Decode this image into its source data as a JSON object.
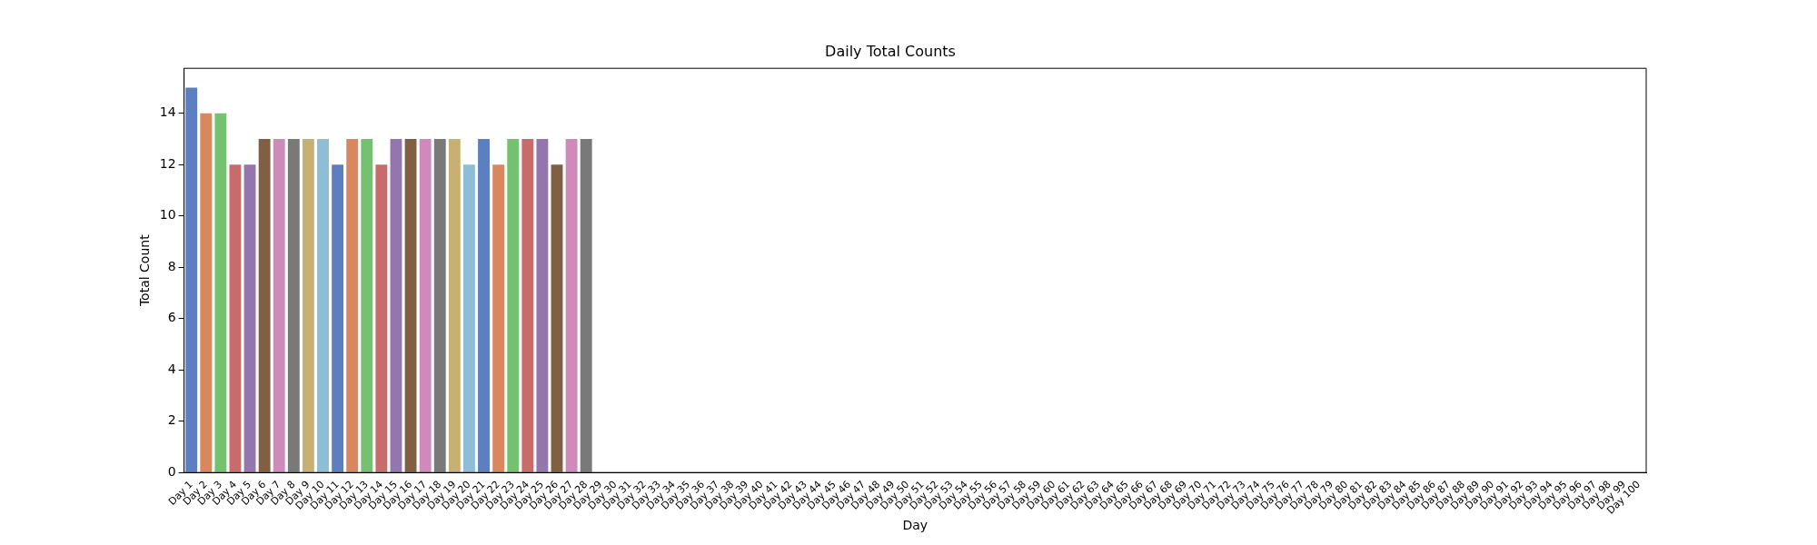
{
  "chart_data": {
    "type": "bar",
    "title": "Daily Total Counts",
    "xlabel": "Day",
    "ylabel": "Total Count",
    "categories": [
      "Day 1",
      "Day 2",
      "Day 3",
      "Day 4",
      "Day 5",
      "Day 6",
      "Day 7",
      "Day 8",
      "Day 9",
      "Day 10",
      "Day 11",
      "Day 12",
      "Day 13",
      "Day 14",
      "Day 15",
      "Day 16",
      "Day 17",
      "Day 18",
      "Day 19",
      "Day 20",
      "Day 21",
      "Day 22",
      "Day 23",
      "Day 24",
      "Day 25",
      "Day 26",
      "Day 27",
      "Day 28",
      "Day 29",
      "Day 30",
      "Day 31",
      "Day 32",
      "Day 33",
      "Day 34",
      "Day 35",
      "Day 36",
      "Day 37",
      "Day 38",
      "Day 39",
      "Day 40",
      "Day 41",
      "Day 42",
      "Day 43",
      "Day 44",
      "Day 45",
      "Day 46",
      "Day 47",
      "Day 48",
      "Day 49",
      "Day 50",
      "Day 51",
      "Day 52",
      "Day 53",
      "Day 54",
      "Day 55",
      "Day 56",
      "Day 57",
      "Day 58",
      "Day 59",
      "Day 60",
      "Day 61",
      "Day 62",
      "Day 63",
      "Day 64",
      "Day 65",
      "Day 66",
      "Day 67",
      "Day 68",
      "Day 69",
      "Day 70",
      "Day 71",
      "Day 72",
      "Day 73",
      "Day 74",
      "Day 75",
      "Day 76",
      "Day 77",
      "Day 78",
      "Day 79",
      "Day 80",
      "Day 81",
      "Day 82",
      "Day 83",
      "Day 84",
      "Day 85",
      "Day 86",
      "Day 87",
      "Day 88",
      "Day 89",
      "Day 90",
      "Day 91",
      "Day 92",
      "Day 93",
      "Day 94",
      "Day 95",
      "Day 96",
      "Day 97",
      "Day 98",
      "Day 99",
      "Day 100"
    ],
    "values": [
      15,
      14,
      14,
      12,
      12,
      13,
      13,
      13,
      13,
      13,
      12,
      13,
      13,
      12,
      13,
      13,
      13,
      13,
      13,
      12,
      13,
      12,
      13,
      13,
      13,
      12,
      13,
      13,
      0,
      0,
      0,
      0,
      0,
      0,
      0,
      0,
      0,
      0,
      0,
      0,
      0,
      0,
      0,
      0,
      0,
      0,
      0,
      0,
      0,
      0,
      0,
      0,
      0,
      0,
      0,
      0,
      0,
      0,
      0,
      0,
      0,
      0,
      0,
      0,
      0,
      0,
      0,
      0,
      0,
      0,
      0,
      0,
      0,
      0,
      0,
      0,
      0,
      0,
      0,
      0,
      0,
      0,
      0,
      0,
      0,
      0,
      0,
      0,
      0,
      0,
      0,
      0,
      0,
      0,
      0,
      0,
      0,
      0,
      0,
      0
    ],
    "colors": [
      "#5b7fc0",
      "#d8875e",
      "#74c16f",
      "#c76b6b",
      "#9575ae",
      "#815f42",
      "#d089bb",
      "#797979",
      "#c7b072",
      "#8dbed6",
      "#5b7fc0",
      "#d8875e",
      "#74c16f",
      "#c76b6b",
      "#9575ae",
      "#815f42",
      "#d089bb",
      "#797979",
      "#c7b072",
      "#8dbed6",
      "#5b7fc0",
      "#d8875e",
      "#74c16f",
      "#c76b6b",
      "#9575ae",
      "#815f42",
      "#d089bb",
      "#797979",
      "#c7b072",
      "#8dbed6",
      "#5b7fc0",
      "#d8875e",
      "#74c16f",
      "#c76b6b",
      "#9575ae",
      "#815f42",
      "#d089bb",
      "#797979",
      "#c7b072",
      "#8dbed6",
      "#5b7fc0",
      "#d8875e",
      "#74c16f",
      "#c76b6b",
      "#9575ae",
      "#815f42",
      "#d089bb",
      "#797979",
      "#c7b072",
      "#8dbed6",
      "#5b7fc0",
      "#d8875e",
      "#74c16f",
      "#c76b6b",
      "#9575ae",
      "#815f42",
      "#d089bb",
      "#797979",
      "#c7b072",
      "#8dbed6",
      "#5b7fc0",
      "#d8875e",
      "#74c16f",
      "#c76b6b",
      "#9575ae",
      "#815f42",
      "#d089bb",
      "#797979",
      "#c7b072",
      "#8dbed6",
      "#5b7fc0",
      "#d8875e",
      "#74c16f",
      "#c76b6b",
      "#9575ae",
      "#815f42",
      "#d089bb",
      "#797979",
      "#c7b072",
      "#8dbed6",
      "#5b7fc0",
      "#d8875e",
      "#74c16f",
      "#c76b6b",
      "#9575ae",
      "#815f42",
      "#d089bb",
      "#797979",
      "#c7b072",
      "#8dbed6",
      "#5b7fc0",
      "#d8875e",
      "#74c16f",
      "#c76b6b",
      "#9575ae",
      "#815f42",
      "#d089bb",
      "#797979",
      "#c7b072",
      "#8dbed6"
    ],
    "ylim": [
      0,
      15.75
    ],
    "yticks": [
      0,
      2,
      4,
      6,
      8,
      10,
      12,
      14
    ],
    "grid": false,
    "legend": false
  }
}
